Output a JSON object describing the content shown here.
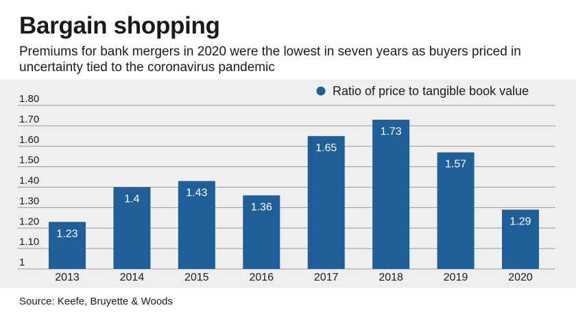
{
  "header": {
    "title": "Bargain shopping",
    "subtitle": "Premiums for bank mergers in 2020 were the lowest in seven years as buyers priced in uncertainty tied to the coronavirus pandemic"
  },
  "footer": {
    "source": "Source: Keefe, Bruyette & Woods"
  },
  "colors": {
    "bar": "#1f5f99",
    "panel_bg": "#efefef",
    "grid": "#9a9a9a"
  },
  "chart_data": {
    "type": "bar",
    "categories": [
      "2013",
      "2014",
      "2015",
      "2016",
      "2017",
      "2018",
      "2019",
      "2020"
    ],
    "series": [
      {
        "name": "Ratio of price to tangible book value",
        "values": [
          1.23,
          1.4,
          1.43,
          1.36,
          1.65,
          1.73,
          1.57,
          1.29
        ],
        "labels": [
          "1.23",
          "1.4",
          "1.43",
          "1.36",
          "1.65",
          "1.73",
          "1.57",
          "1.29"
        ]
      }
    ],
    "y_ticks": [
      1,
      1.1,
      1.2,
      1.3,
      1.4,
      1.5,
      1.6,
      1.7,
      1.8
    ],
    "y_tick_labels": [
      "1",
      "1.10",
      "1.20",
      "1.30",
      "1.40",
      "1.50",
      "1.60",
      "1.70",
      "1.80"
    ],
    "ylim": [
      1,
      1.8
    ],
    "grid": true,
    "legend_position": "top-right"
  }
}
